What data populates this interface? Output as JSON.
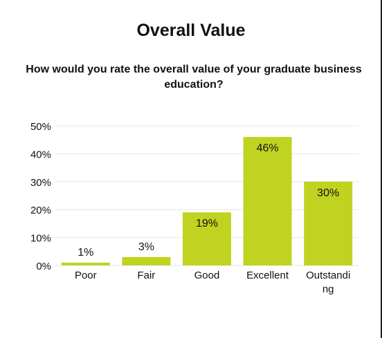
{
  "title": "Overall Value",
  "subtitle": "How would you rate the overall value of your graduate business education?",
  "chart_data": {
    "type": "bar",
    "title": "Overall Value",
    "subtitle": "How would you rate the overall value of your graduate business education?",
    "categories": [
      "Poor",
      "Fair",
      "Good",
      "Excellent",
      "Outstanding"
    ],
    "category_label_lines": [
      [
        "Poor"
      ],
      [
        "Fair"
      ],
      [
        "Good"
      ],
      [
        "Excellent"
      ],
      [
        "Outstandi",
        "ng"
      ]
    ],
    "values": [
      1,
      3,
      19,
      46,
      30
    ],
    "value_labels": [
      "1%",
      "3%",
      "19%",
      "46%",
      "30%"
    ],
    "y_ticks": [
      0,
      10,
      20,
      30,
      40,
      50
    ],
    "y_tick_labels": [
      "0%",
      "10%",
      "20%",
      "30%",
      "40%",
      "50%"
    ],
    "ylim": [
      0,
      50
    ],
    "xlabel": "",
    "ylabel": "",
    "grid": true,
    "legend": "none",
    "colors": {
      "bar": "#bfd320",
      "grid": "#e6e6e6",
      "text": "#111111"
    }
  }
}
